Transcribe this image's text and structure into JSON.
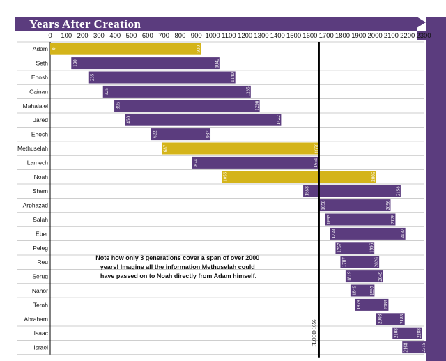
{
  "chart_data": {
    "type": "bar",
    "title": "Years After Creation",
    "xlim": [
      0,
      2300
    ],
    "x_ticks": [
      0,
      100,
      200,
      300,
      400,
      500,
      600,
      700,
      800,
      900,
      1000,
      1100,
      1200,
      1300,
      1400,
      1500,
      1600,
      1700,
      1800,
      1900,
      2000,
      2100,
      2200,
      2300
    ],
    "grid": "horizontal",
    "rows": [
      {
        "name": "Adam",
        "start": 0,
        "end": 930,
        "highlight": true
      },
      {
        "name": "Seth",
        "start": 130,
        "end": 1042,
        "highlight": false
      },
      {
        "name": "Enosh",
        "start": 235,
        "end": 1140,
        "highlight": false
      },
      {
        "name": "Cainan",
        "start": 325,
        "end": 1235,
        "highlight": false
      },
      {
        "name": "Mahalalel",
        "start": 395,
        "end": 1290,
        "highlight": false
      },
      {
        "name": "Jared",
        "start": 460,
        "end": 1422,
        "highlight": false
      },
      {
        "name": "Enoch",
        "start": 622,
        "end": 987,
        "highlight": false
      },
      {
        "name": "Methuselah",
        "start": 687,
        "end": 1656,
        "highlight": true
      },
      {
        "name": "Lamech",
        "start": 874,
        "end": 1651,
        "highlight": false
      },
      {
        "name": "Noah",
        "start": 1056,
        "end": 2006,
        "highlight": true
      },
      {
        "name": "Shem",
        "start": 1558,
        "end": 2158,
        "highlight": false
      },
      {
        "name": "Arphazad",
        "start": 1658,
        "end": 2096,
        "highlight": false
      },
      {
        "name": "Salah",
        "start": 1693,
        "end": 2126,
        "highlight": false
      },
      {
        "name": "Eber",
        "start": 1723,
        "end": 2187,
        "highlight": false
      },
      {
        "name": "Peleg",
        "start": 1757,
        "end": 1996,
        "highlight": false
      },
      {
        "name": "Reu",
        "start": 1787,
        "end": 2026,
        "highlight": false
      },
      {
        "name": "Serug",
        "start": 1819,
        "end": 2049,
        "highlight": false
      },
      {
        "name": "Nahor",
        "start": 1849,
        "end": 1997,
        "highlight": false
      },
      {
        "name": "Terah",
        "start": 1878,
        "end": 2083,
        "highlight": false
      },
      {
        "name": "Abraham",
        "start": 2008,
        "end": 2183,
        "highlight": false
      },
      {
        "name": "Isaac",
        "start": 2108,
        "end": 2288,
        "highlight": false
      },
      {
        "name": "Israel",
        "start": 2168,
        "end": 2315,
        "highlight": false
      }
    ],
    "flood": {
      "year": 1656,
      "label": "FLOOD 1656"
    },
    "annotation": "Note how only 3 generations cover a span of over 2000 years! Imagine all the information Methuselah could have passed on to Noah directly from Adam himself.",
    "annotation_lines": [
      "Note how only 3 generations cover a span of over 2000",
      "years! Imagine all the information Methuselah could",
      "have passed on to Noah directly from Adam himself."
    ],
    "colors": {
      "bar": "#5b3c7e",
      "highlight": "#d4b41a",
      "title_band": "#5b3c7e",
      "flood_line": "#000000",
      "gridline": "#bdbdbd"
    }
  }
}
